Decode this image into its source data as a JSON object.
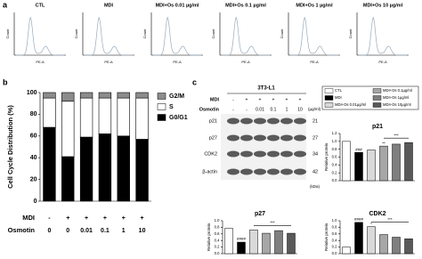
{
  "panel_labels": [
    "a",
    "b",
    "c"
  ],
  "flow": {
    "titles": [
      "CTL",
      "MDI",
      "MDI+Os 0.01 µg/ml",
      "MDI+Os 0.1 µg/ml",
      "MDI+Os 1 µg/ml",
      "MDI+Os 10 µg/ml"
    ],
    "x_label": "PE-A",
    "y_label": "Count"
  },
  "blot": {
    "cell_line": "3T3-L1",
    "rows": [
      {
        "label": "MDI",
        "values": [
          "-",
          "+",
          "+",
          "+",
          "+",
          "+"
        ]
      },
      {
        "label": "Osmotin",
        "values": [
          "-",
          "-",
          "0.01",
          "0.1",
          "1",
          "10"
        ]
      }
    ],
    "unit": "(µg/ml)",
    "kda_label": "(kDa)",
    "proteins": [
      {
        "name": "p21",
        "kda": 21
      },
      {
        "name": "p27",
        "kda": 27
      },
      {
        "name": "CDK2",
        "kda": 34
      },
      {
        "name": "β-actin",
        "kda": 42
      }
    ]
  },
  "chart_data": [
    {
      "type": "stacked_bar",
      "ylabel": "Cell Cycle Distribution (%)",
      "ylim": [
        0,
        100
      ],
      "yticks": [
        0,
        20,
        40,
        60,
        80,
        100
      ],
      "series": [
        {
          "name": "G0/G1",
          "color": "#000000",
          "values": [
            68,
            41,
            59,
            62,
            60,
            57
          ]
        },
        {
          "name": "S",
          "color": "#ffffff",
          "values": [
            27,
            51,
            36,
            33,
            35,
            38
          ]
        },
        {
          "name": "G2/M",
          "color": "#8c8c8c",
          "values": [
            5,
            8,
            5,
            5,
            5,
            5
          ]
        }
      ],
      "rows": [
        {
          "label": "MDI",
          "values": [
            "-",
            "+",
            "+",
            "+",
            "+",
            "+"
          ]
        },
        {
          "label": "Osmotin",
          "values": [
            0,
            0,
            0.01,
            0.1,
            1,
            10
          ]
        }
      ]
    },
    {
      "type": "bar",
      "title": "p21",
      "ylabel": "Relative protein",
      "ylim": [
        0,
        1.2
      ],
      "yticks": [
        {
          "value": 0,
          "label": "0.0"
        },
        0.2,
        0.4,
        0.6,
        0.8,
        {
          "value": 1,
          "label": "1.0"
        },
        1.2
      ],
      "categories": [
        "CTL",
        "MDI",
        "MDI+Os 0.01µg/ml",
        "MDI+Os 0.1µg/ml",
        "MDI+Os 1µg/ml",
        "MDI+Os 10µg/ml"
      ],
      "colors": [
        "#ffffff",
        "#000000",
        "#d9d9d9",
        "#a6a6a6",
        "#7f7f7f",
        "#595959"
      ],
      "values": [
        1.0,
        0.72,
        0.78,
        0.88,
        0.93,
        0.97
      ],
      "annotations": [
        null,
        "###",
        null,
        "**",
        null,
        null
      ],
      "bracket": "***"
    },
    {
      "type": "bar",
      "title": "p27",
      "ylabel": "Relative protein",
      "ylim": [
        0,
        1.0
      ],
      "yticks": [
        {
          "value": 0,
          "label": "0.0"
        },
        0.2,
        0.4,
        0.6,
        0.8,
        {
          "value": 1,
          "label": "1.0"
        }
      ],
      "values": [
        0.77,
        0.35,
        0.72,
        0.62,
        0.7,
        0.62
      ],
      "annotations": [
        null,
        "####",
        null,
        null,
        null,
        null
      ],
      "bracket": "***"
    },
    {
      "type": "bar",
      "title": "CDK2",
      "ylabel": "Relative protein",
      "ylim": [
        0,
        1.0
      ],
      "yticks": [
        {
          "value": 0,
          "label": "0.0"
        },
        0.2,
        0.4,
        0.6,
        0.8,
        {
          "value": 1,
          "label": "1.0"
        }
      ],
      "values": [
        0.2,
        0.95,
        0.82,
        0.58,
        0.5,
        0.45
      ],
      "annotations": [
        null,
        "####",
        "*",
        null,
        null,
        null
      ],
      "bracket": "***"
    }
  ]
}
